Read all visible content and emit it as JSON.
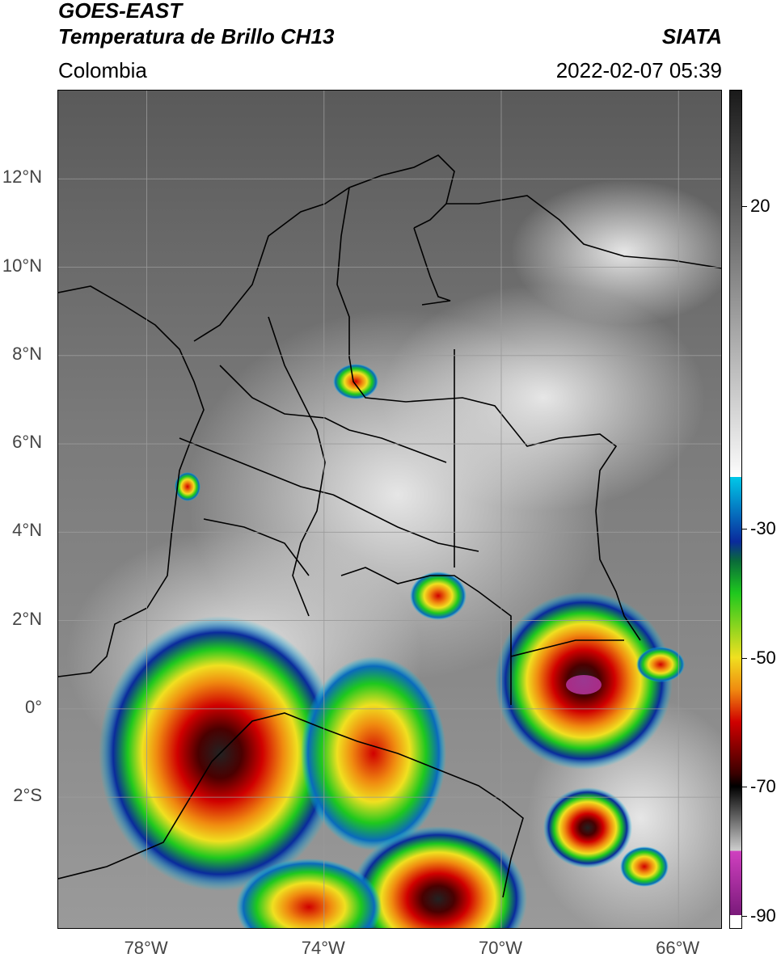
{
  "header": {
    "satellite": "GOES-EAST",
    "product": "Temperatura de Brillo CH13",
    "brand": "SIATA",
    "region": "Colombia",
    "timestamp": "2022-02-07 05:39"
  },
  "map": {
    "extent": {
      "lon_min": -80.0,
      "lon_max": -65.0,
      "lat_min": -5.0,
      "lat_max": 14.0
    },
    "lat_labels": [
      {
        "lat": 12,
        "label": "12°N"
      },
      {
        "lat": 10,
        "label": "10°N"
      },
      {
        "lat": 8,
        "label": "8°N"
      },
      {
        "lat": 6,
        "label": "6°N"
      },
      {
        "lat": 4,
        "label": "4°N"
      },
      {
        "lat": 2,
        "label": "2°N"
      },
      {
        "lat": 0,
        "label": "0°"
      },
      {
        "lat": -2,
        "label": "2°S"
      }
    ],
    "lon_labels": [
      {
        "lon": -78,
        "label": "78°W"
      },
      {
        "lon": -74,
        "label": "74°W"
      },
      {
        "lon": -70,
        "label": "70°W"
      },
      {
        "lon": -66,
        "label": "66°W"
      }
    ],
    "colors": {
      "gridline": "#9a9a9a",
      "border": "#000000"
    }
  },
  "colorbar": {
    "vmin": -92,
    "vmax": 38,
    "ticks": [
      {
        "value": 20,
        "label": "20"
      },
      {
        "value": -30,
        "label": "-30"
      },
      {
        "value": -50,
        "label": "-50"
      },
      {
        "value": -70,
        "label": "-70"
      },
      {
        "value": -90,
        "label": "-90"
      }
    ],
    "colors": {
      "gray_warm": "#1a1a1a",
      "gray_cold": "#f4f4f4",
      "cyan": "#00c8e8",
      "blue": "#0a2a9c",
      "green": "#1ec81e",
      "yellow": "#f0e020",
      "orange": "#f08a10",
      "red": "#d00000",
      "dark_red": "#3a0000",
      "magenta": "#d040c0",
      "purple": "#7a1a7a"
    }
  }
}
